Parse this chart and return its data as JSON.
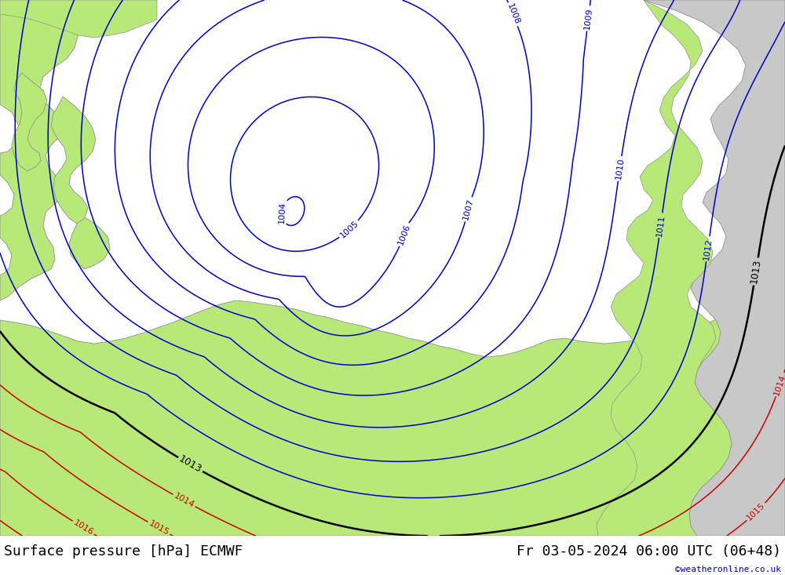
{
  "title_left": "Surface pressure [hPa] ECMWF",
  "title_right": "Fr 03-05-2024 06:00 UTC (06+48)",
  "credit": "©weatheronline.co.uk",
  "land_color": "#b8e878",
  "sea_color": "#c8cce0",
  "isobar_blue_color": "#0000cc",
  "isobar_black_color": "#000000",
  "isobar_red_color": "#cc0000",
  "footer_bg": "#ffffff",
  "footer_text_color": "#000000",
  "credit_color": "#0000bb",
  "title_fontsize": 13,
  "label_fontsize": 8
}
